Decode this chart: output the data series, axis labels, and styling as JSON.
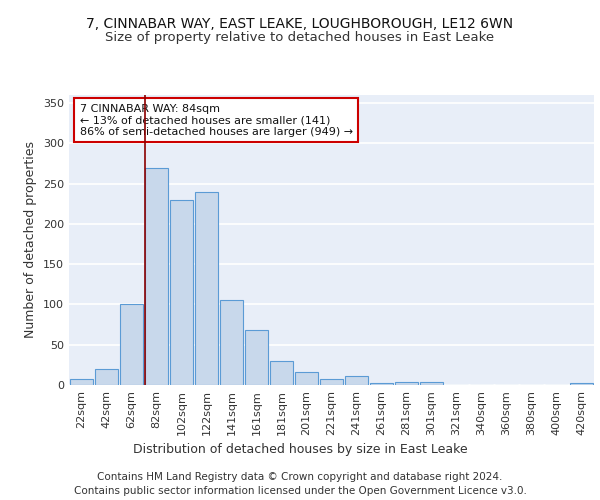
{
  "title1": "7, CINNABAR WAY, EAST LEAKE, LOUGHBOROUGH, LE12 6WN",
  "title2": "Size of property relative to detached houses in East Leake",
  "xlabel": "Distribution of detached houses by size in East Leake",
  "ylabel": "Number of detached properties",
  "footnote1": "Contains HM Land Registry data © Crown copyright and database right 2024.",
  "footnote2": "Contains public sector information licensed under the Open Government Licence v3.0.",
  "bar_labels": [
    "22sqm",
    "42sqm",
    "62sqm",
    "82sqm",
    "102sqm",
    "122sqm",
    "141sqm",
    "161sqm",
    "181sqm",
    "201sqm",
    "221sqm",
    "241sqm",
    "261sqm",
    "281sqm",
    "301sqm",
    "321sqm",
    "340sqm",
    "360sqm",
    "380sqm",
    "400sqm",
    "420sqm"
  ],
  "bar_values": [
    7,
    20,
    100,
    270,
    230,
    240,
    105,
    68,
    30,
    16,
    7,
    11,
    3,
    4,
    4,
    0,
    0,
    0,
    0,
    0,
    3
  ],
  "bar_color": "#c8d8eb",
  "bar_edge_color": "#5b9bd5",
  "annotation_text": "7 CINNABAR WAY: 84sqm\n← 13% of detached houses are smaller (141)\n86% of semi-detached houses are larger (949) →",
  "annotation_box_color": "white",
  "annotation_box_edge_color": "#cc0000",
  "marker_color": "#8b0000",
  "ylim": [
    0,
    360
  ],
  "yticks": [
    0,
    50,
    100,
    150,
    200,
    250,
    300,
    350
  ],
  "background_color": "#e8eef8",
  "grid_color": "white",
  "title1_fontsize": 10,
  "title2_fontsize": 9.5,
  "xlabel_fontsize": 9,
  "ylabel_fontsize": 9,
  "tick_fontsize": 8,
  "annotation_fontsize": 8,
  "footnote_fontsize": 7.5
}
